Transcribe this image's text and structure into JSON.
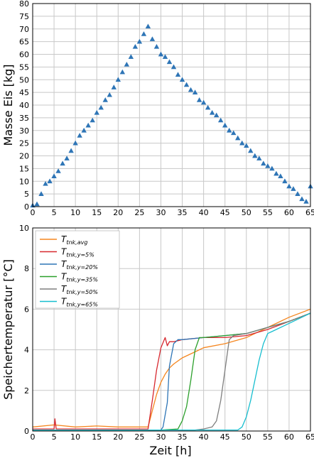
{
  "chart_data": [
    {
      "type": "scatter",
      "title": "",
      "xlabel": "",
      "ylabel": "Masse Eis [kg]",
      "xlim": [
        0,
        65
      ],
      "ylim": [
        0,
        80
      ],
      "x_ticks": [
        "0",
        "5",
        "10",
        "15",
        "20",
        "25",
        "30",
        "35",
        "40",
        "45",
        "50",
        "55",
        "60",
        "65"
      ],
      "y_ticks": [
        "0",
        "5",
        "10",
        "15",
        "20",
        "25",
        "30",
        "35",
        "40",
        "45",
        "50",
        "55",
        "60",
        "65",
        "70",
        "75",
        "80"
      ],
      "grid": true,
      "marker": "triangle",
      "color": "#2e75b6",
      "series": [
        {
          "x": [
            0,
            1,
            2,
            3,
            4,
            5,
            6,
            7,
            8,
            9,
            10,
            11,
            12,
            13,
            14,
            15,
            16,
            17,
            18,
            19,
            20,
            21,
            22,
            23,
            24,
            25,
            26,
            27,
            28,
            29,
            30,
            31,
            32,
            33,
            34,
            35,
            36,
            37,
            38,
            39,
            40,
            41,
            42,
            43,
            44,
            45,
            46,
            47,
            48,
            49,
            50,
            51,
            52,
            53,
            54,
            55,
            56,
            57,
            58,
            59,
            60,
            61,
            62,
            63,
            64,
            65
          ],
          "y": [
            0.5,
            1,
            5,
            9,
            10,
            12,
            14,
            17,
            19,
            22,
            25,
            28,
            30,
            32,
            34,
            37,
            39,
            42,
            44,
            47,
            50,
            53,
            56,
            59,
            63,
            65,
            68,
            71,
            66,
            63,
            60,
            59,
            57,
            55,
            52,
            50,
            48,
            46,
            45,
            42,
            41,
            39,
            37,
            36,
            34,
            32,
            30,
            29,
            27,
            25,
            24,
            22,
            20,
            19,
            17,
            16,
            15,
            13,
            12,
            10,
            8,
            7,
            5,
            3,
            2,
            8
          ]
        }
      ]
    },
    {
      "type": "line",
      "title": "",
      "xlabel": "Zeit [h]",
      "ylabel": "Speichertemperatur [°C]",
      "xlim": [
        0,
        65
      ],
      "ylim": [
        0,
        10
      ],
      "x_ticks": [
        "0",
        "5",
        "10",
        "15",
        "20",
        "25",
        "30",
        "35",
        "40",
        "45",
        "50",
        "55",
        "60",
        "65"
      ],
      "y_ticks": [
        "0",
        "2",
        "4",
        "6",
        "8",
        "10"
      ],
      "grid": true,
      "legend_position": "top-left",
      "series": [
        {
          "name": "T",
          "subscript": "tnk,avg",
          "color": "#f5861f",
          "x": [
            0,
            5,
            10,
            15,
            20,
            25,
            27,
            28,
            29,
            30,
            31,
            32,
            33,
            35,
            38,
            40,
            45,
            50,
            55,
            60,
            65
          ],
          "y": [
            0.2,
            0.3,
            0.2,
            0.25,
            0.2,
            0.2,
            0.2,
            1.0,
            1.8,
            2.4,
            2.8,
            3.1,
            3.3,
            3.6,
            3.9,
            4.1,
            4.3,
            4.6,
            5.1,
            5.6,
            6.0
          ]
        },
        {
          "name": "T",
          "subscript": "tnk,y=5%",
          "color": "#d7282f",
          "x": [
            0,
            5,
            5.2,
            5.5,
            10,
            20,
            27,
            28,
            29,
            30,
            31,
            31.5,
            32,
            33,
            35,
            40,
            45,
            50,
            55,
            60,
            65
          ],
          "y": [
            0.1,
            0.1,
            0.6,
            0.1,
            0.1,
            0.1,
            0.1,
            1.5,
            3.0,
            4.1,
            4.6,
            4.2,
            4.4,
            4.4,
            4.5,
            4.6,
            4.6,
            4.7,
            5.0,
            5.4,
            5.8
          ]
        },
        {
          "name": "T",
          "subscript": "tnk,y=20%",
          "color": "#2e75b6",
          "x": [
            0,
            10,
            20,
            30,
            30.5,
            31,
            31.5,
            32,
            33,
            34,
            35,
            40,
            45,
            50,
            55,
            60,
            65
          ],
          "y": [
            0.05,
            0.05,
            0.05,
            0.05,
            0.2,
            0.8,
            1.4,
            3.2,
            4.3,
            4.5,
            4.5,
            4.6,
            4.7,
            4.8,
            5.1,
            5.4,
            5.8
          ]
        },
        {
          "name": "T",
          "subscript": "tnk,y=35%",
          "color": "#2ca02c",
          "x": [
            0,
            10,
            20,
            30,
            34,
            35,
            36,
            37,
            38,
            39,
            40,
            45,
            50,
            55,
            60,
            65
          ],
          "y": [
            0.05,
            0.05,
            0.05,
            0.05,
            0.1,
            0.5,
            1.2,
            2.5,
            4.0,
            4.6,
            4.6,
            4.7,
            4.8,
            5.1,
            5.4,
            5.8
          ]
        },
        {
          "name": "T",
          "subscript": "tnk,y=50%",
          "color": "#7f7f7f",
          "x": [
            0,
            10,
            20,
            30,
            38,
            40,
            42,
            43,
            44,
            45,
            46,
            47,
            50,
            55,
            60,
            65
          ],
          "y": [
            0.05,
            0.05,
            0.05,
            0.05,
            0.05,
            0.1,
            0.2,
            0.5,
            1.5,
            3.0,
            4.5,
            4.7,
            4.8,
            5.1,
            5.4,
            5.8
          ]
        },
        {
          "name": "T",
          "subscript": "tnk,y=65%",
          "color": "#17becf",
          "x": [
            0,
            10,
            20,
            30,
            40,
            48,
            49,
            50,
            51,
            52,
            53,
            54,
            55,
            57,
            60,
            65
          ],
          "y": [
            0.05,
            0.05,
            0.05,
            0.05,
            0.05,
            0.05,
            0.2,
            0.7,
            1.5,
            2.5,
            3.5,
            4.3,
            4.8,
            5.0,
            5.3,
            5.8
          ]
        }
      ]
    }
  ]
}
